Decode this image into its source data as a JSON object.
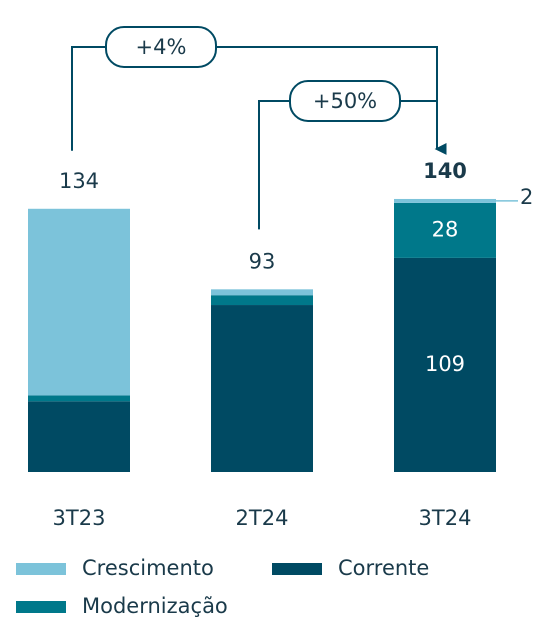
{
  "chart_data": {
    "type": "stacked_bar",
    "categories": [
      "3T23",
      "2T24",
      "3T24"
    ],
    "series": [
      {
        "name": "Corrente",
        "color": "#004a63",
        "values": [
          36,
          85,
          109
        ]
      },
      {
        "name": "Modernização",
        "color": "#00788a",
        "values": [
          3,
          5,
          28
        ]
      },
      {
        "name": "Crescimento",
        "color": "#7cc3da",
        "values": [
          95,
          3,
          2
        ]
      }
    ],
    "totals": [
      134,
      93,
      140
    ],
    "show_value_labels": [
      false,
      false,
      true
    ],
    "bold_total": [
      false,
      false,
      true
    ],
    "annotations": [
      {
        "text": "+4%",
        "from": 0,
        "to": 2
      },
      {
        "text": "+50%",
        "from": 1,
        "to": 2
      }
    ],
    "legend_order": [
      2,
      0,
      1
    ]
  }
}
